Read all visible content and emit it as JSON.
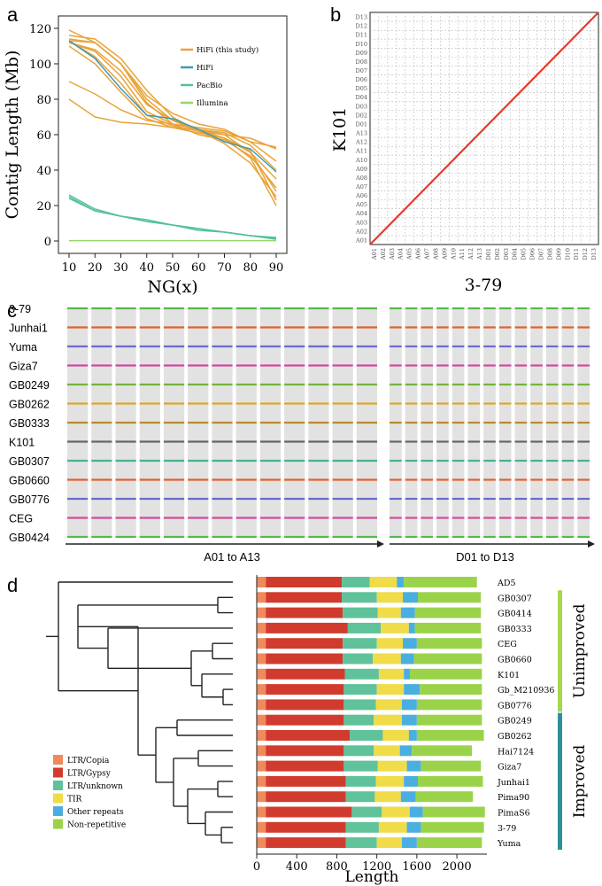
{
  "panels": {
    "a": "a",
    "b": "b",
    "c": "c",
    "d": "d"
  },
  "colors": {
    "hifi_study": "#e8a43a",
    "hifi": "#3e9ab8",
    "pacbio": "#56c29a",
    "illumina": "#9ad56a",
    "red_line": "#e8392f",
    "ltr_copia": "#f08a5d",
    "ltr_gypsy": "#d13b2e",
    "ltr_unknown": "#5fc29a",
    "tir": "#f0dc48",
    "other": "#4aaee0",
    "nonrep": "#9ad34a",
    "unimproved": "#a6d74d",
    "improved": "#2e8f9a"
  },
  "chart_data": [
    {
      "type": "line",
      "panel": "a",
      "title": "",
      "xlabel": "NG(x)",
      "ylabel": "Contig Length (Mb)",
      "x": [
        10,
        20,
        30,
        40,
        50,
        60,
        70,
        80,
        90
      ],
      "xlim": [
        10,
        90
      ],
      "ylim": [
        0,
        120
      ],
      "yticks": [
        0,
        20,
        40,
        60,
        80,
        100,
        120
      ],
      "legend": [
        {
          "name": "HiFi (this study)",
          "color": "#e8a43a"
        },
        {
          "name": "HiFi",
          "color": "#3e9ab8"
        },
        {
          "name": "PacBio",
          "color": "#56c29a"
        },
        {
          "name": "Illumina",
          "color": "#9ad56a"
        }
      ],
      "series": [
        {
          "group": "hifi_study",
          "values": [
            119,
            112,
            100,
            80,
            68,
            63,
            58,
            47,
            20
          ]
        },
        {
          "group": "hifi_study",
          "values": [
            116,
            114,
            103,
            85,
            70,
            62,
            55,
            44,
            25
          ]
        },
        {
          "group": "hifi_study",
          "values": [
            114,
            112,
            100,
            78,
            66,
            60,
            57,
            48,
            30
          ]
        },
        {
          "group": "hifi_study",
          "values": [
            113,
            104,
            89,
            71,
            65,
            62,
            60,
            50,
            35
          ]
        },
        {
          "group": "hifi_study",
          "values": [
            112,
            107,
            93,
            73,
            66,
            63,
            61,
            54,
            40
          ]
        },
        {
          "group": "hifi_study",
          "values": [
            110,
            100,
            84,
            69,
            64,
            61,
            58,
            51,
            23
          ]
        },
        {
          "group": "hifi_study",
          "values": [
            90,
            83,
            74,
            68,
            66,
            64,
            62,
            56,
            45
          ]
        },
        {
          "group": "hifi_study",
          "values": [
            80,
            70,
            67,
            66,
            64,
            63,
            60,
            58,
            52
          ]
        },
        {
          "group": "hifi_study",
          "values": [
            113,
            112,
            100,
            82,
            72,
            66,
            63,
            56,
            53
          ]
        },
        {
          "group": "hifi_study",
          "values": [
            112,
            108,
            96,
            77,
            68,
            62,
            58,
            50,
            28
          ]
        },
        {
          "group": "hifi",
          "values": [
            113,
            103,
            86,
            71,
            69,
            63,
            56,
            52,
            39
          ]
        },
        {
          "group": "pacbio",
          "values": [
            26,
            18,
            14,
            12,
            9,
            7,
            5,
            3,
            2
          ]
        },
        {
          "group": "pacbio",
          "values": [
            25,
            17,
            14,
            11,
            9,
            7,
            5,
            3,
            1.5
          ]
        },
        {
          "group": "pacbio",
          "values": [
            24,
            17,
            14,
            11,
            9,
            6,
            5,
            3,
            1
          ]
        },
        {
          "group": "illumina",
          "values": [
            0.2,
            0.2,
            0.2,
            0.2,
            0.2,
            0.2,
            0.2,
            0.2,
            0.2
          ]
        }
      ]
    },
    {
      "type": "scatter",
      "panel": "b",
      "title": "",
      "xlabel": "3-79",
      "ylabel": "K101",
      "ticks": [
        "A01",
        "A02",
        "A03",
        "A04",
        "A05",
        "A06",
        "A07",
        "A08",
        "A09",
        "A10",
        "A11",
        "A12",
        "A13",
        "D01",
        "D02",
        "D03",
        "D04",
        "D05",
        "D06",
        "D07",
        "D08",
        "D09",
        "D10",
        "D11",
        "D12",
        "D13"
      ],
      "diagonal": "collinear 1:1"
    },
    {
      "type": "synteny",
      "panel": "c",
      "genomes": [
        "3-79",
        "Junhai1",
        "Yuma",
        "Giza7",
        "GB0249",
        "GB0262",
        "GB0333",
        "K101",
        "GB0307",
        "GB0660",
        "GB0776",
        "CEG",
        "GB0424"
      ],
      "genome_colors": [
        "#56b94a",
        "#e0622d",
        "#6a6ad0",
        "#d24a9c",
        "#74b43a",
        "#d9a92b",
        "#b88a2e",
        "#666666",
        "#48b28a",
        "#e0622d",
        "#6a6ad0",
        "#d24a9c",
        "#56b94a"
      ],
      "chromosome_count": 26,
      "range_a": "A01 to A13",
      "range_d": "D01 to D13"
    },
    {
      "type": "bar",
      "panel": "d",
      "orientation": "horizontal",
      "stacked": true,
      "xlabel": "Length",
      "xlim": [
        0,
        2300
      ],
      "xticks": [
        0,
        400,
        800,
        1200,
        1600,
        2000
      ],
      "categories": [
        "AD5",
        "GB0307",
        "GB0414",
        "GB0333",
        "CEG",
        "GB0660",
        "K101",
        "Gb_M210936",
        "GB0776",
        "GB0249",
        "GB0262",
        "Hai7124",
        "Giza7",
        "Junhai1",
        "Pima90",
        "PimaS6",
        "3-79",
        "Yuma"
      ],
      "series": [
        {
          "name": "LTR/Copia",
          "color": "#f08a5d",
          "values": [
            90,
            90,
            90,
            90,
            90,
            90,
            90,
            90,
            90,
            90,
            90,
            90,
            90,
            90,
            90,
            90,
            90,
            90
          ]
        },
        {
          "name": "LTR/Gypsy",
          "color": "#d13b2e",
          "values": [
            760,
            760,
            770,
            820,
            770,
            770,
            790,
            780,
            780,
            780,
            840,
            780,
            780,
            800,
            800,
            860,
            800,
            800
          ]
        },
        {
          "name": "LTR/unknown",
          "color": "#5fc29a",
          "values": [
            280,
            350,
            350,
            330,
            340,
            300,
            340,
            330,
            320,
            300,
            330,
            300,
            340,
            300,
            290,
            300,
            330,
            310
          ]
        },
        {
          "name": "TIR",
          "color": "#f0dc48",
          "values": [
            270,
            260,
            230,
            280,
            260,
            280,
            250,
            270,
            260,
            280,
            260,
            260,
            290,
            280,
            260,
            280,
            280,
            250
          ]
        },
        {
          "name": "Other repeats",
          "color": "#4aaee0",
          "values": [
            70,
            150,
            140,
            60,
            140,
            130,
            60,
            160,
            150,
            150,
            80,
            120,
            140,
            140,
            150,
            130,
            140,
            150
          ]
        },
        {
          "name": "Non-repetitive",
          "color": "#9ad34a",
          "values": [
            730,
            630,
            660,
            660,
            650,
            680,
            720,
            620,
            650,
            650,
            670,
            600,
            600,
            650,
            570,
            620,
            630,
            650
          ]
        }
      ],
      "groups": [
        {
          "name": "Unimproved",
          "from": "GB0307",
          "to": "GB0776"
        },
        {
          "name": "Improved",
          "from": "GB0249",
          "to": "Yuma"
        }
      ]
    }
  ]
}
